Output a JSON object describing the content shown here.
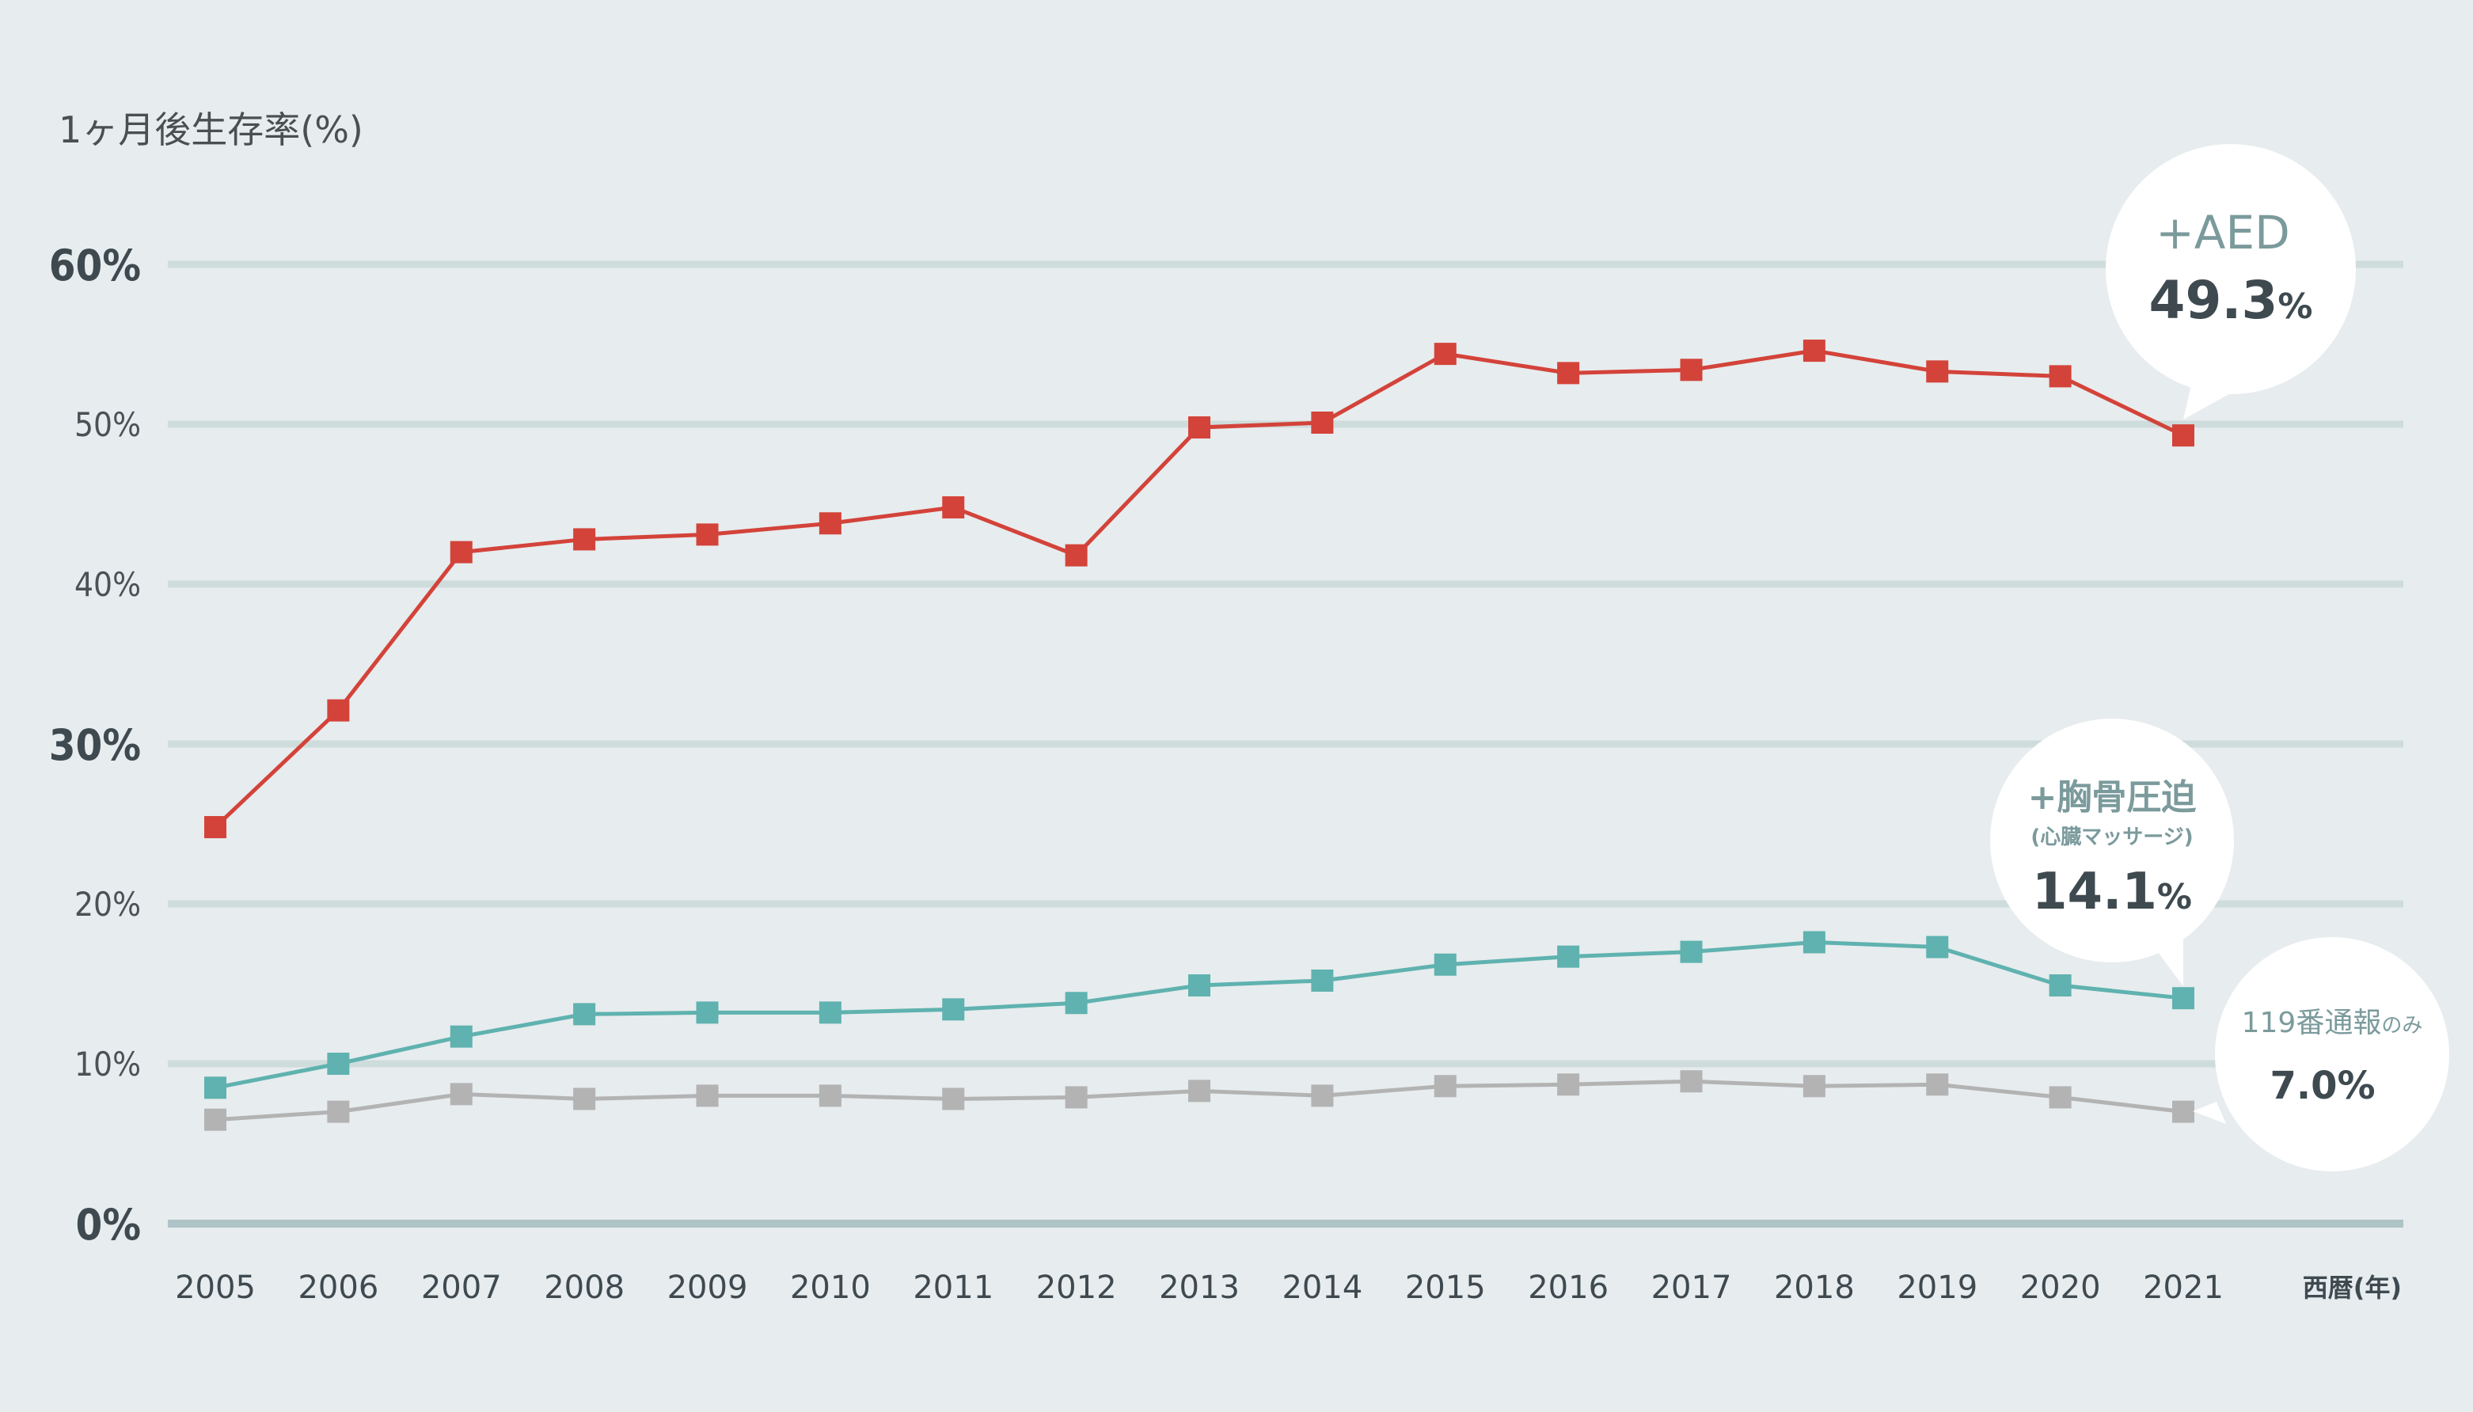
{
  "chart_data": {
    "type": "line",
    "ylabel": "1ヶ月後生存率(%)",
    "xlabel": "西暦(年)",
    "ylim": [
      0,
      60
    ],
    "yticks": [
      {
        "value": 0,
        "label": "0%",
        "major": true
      },
      {
        "value": 10,
        "label": "10%",
        "major": false
      },
      {
        "value": 20,
        "label": "20%",
        "major": false
      },
      {
        "value": 30,
        "label": "30%",
        "major": true
      },
      {
        "value": 40,
        "label": "40%",
        "major": false
      },
      {
        "value": 50,
        "label": "50%",
        "major": false
      },
      {
        "value": 60,
        "label": "60%",
        "major": true
      }
    ],
    "categories": [
      "2005",
      "2006",
      "2007",
      "2008",
      "2009",
      "2010",
      "2011",
      "2012",
      "2013",
      "2014",
      "2015",
      "2016",
      "2017",
      "2018",
      "2019",
      "2020",
      "2021"
    ],
    "grid": true,
    "series": [
      {
        "id": "aed",
        "color": "#d3433a",
        "values": [
          24.8,
          32.1,
          42.0,
          42.8,
          43.1,
          43.8,
          44.8,
          41.8,
          49.8,
          50.1,
          54.4,
          53.2,
          53.4,
          54.6,
          53.3,
          53.0,
          49.3
        ],
        "callout": {
          "line1": "+AED",
          "line2": "",
          "value": "49.3",
          "unit": "%"
        }
      },
      {
        "id": "cpr",
        "color": "#5fb2af",
        "values": [
          8.5,
          10.0,
          11.7,
          13.1,
          13.2,
          13.2,
          13.4,
          13.8,
          14.9,
          15.2,
          16.2,
          16.7,
          17.0,
          17.6,
          17.3,
          14.9,
          14.1
        ],
        "callout": {
          "line1": "+胸骨圧迫",
          "line2": "(心臓マッサージ)",
          "value": "14.1",
          "unit": "%"
        }
      },
      {
        "id": "call",
        "color": "#b3b3b3",
        "values": [
          6.5,
          7.0,
          8.1,
          7.8,
          8.0,
          8.0,
          7.8,
          7.9,
          8.3,
          8.0,
          8.6,
          8.7,
          8.9,
          8.6,
          8.7,
          7.9,
          7.0
        ],
        "callout": {
          "line1": "119番通報",
          "line1_suffix": "のみ",
          "line2": "",
          "value": "7.0",
          "unit": "%"
        }
      }
    ]
  }
}
